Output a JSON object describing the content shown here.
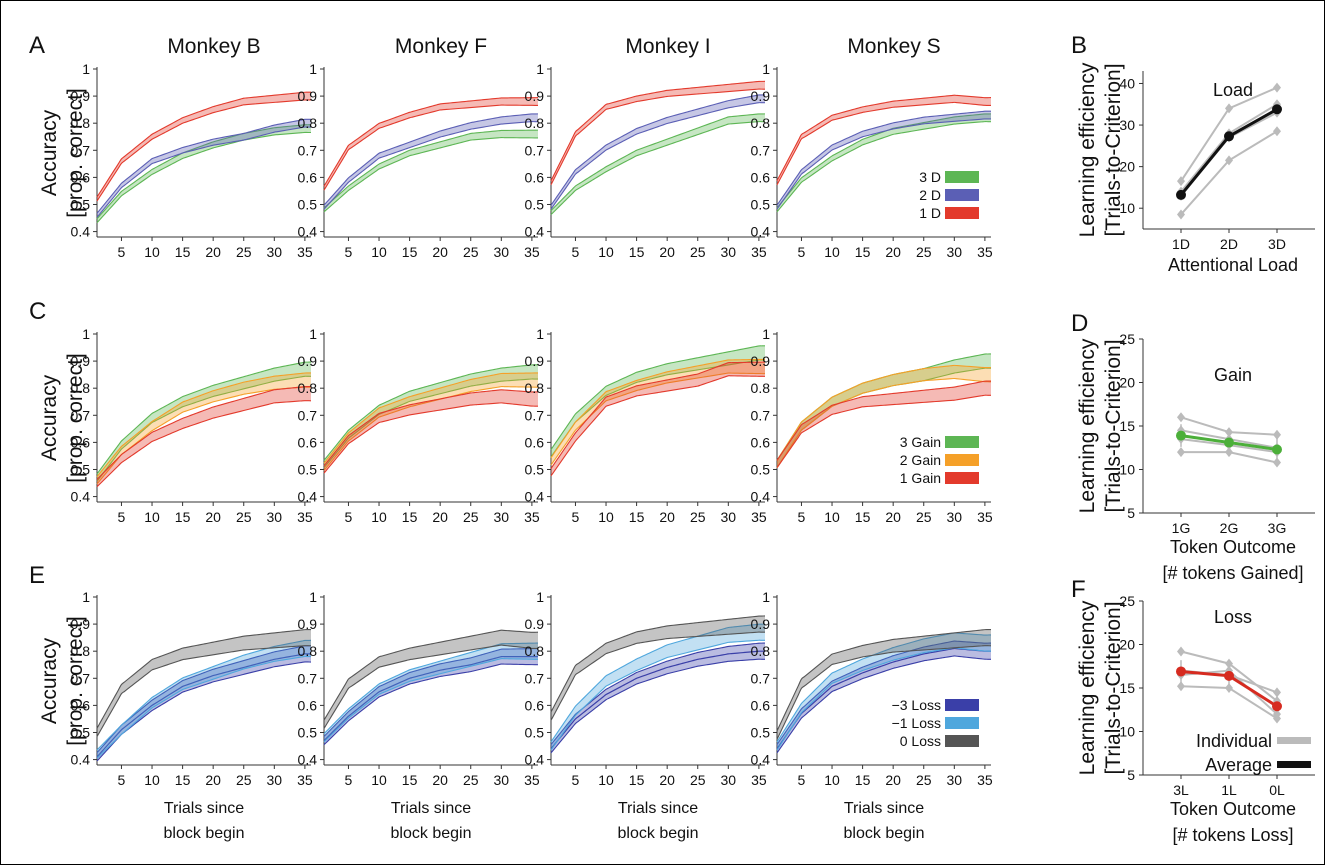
{
  "panel_letters": [
    "A",
    "B",
    "C",
    "D",
    "E",
    "F"
  ],
  "column_titles": [
    "Monkey B",
    "Monkey F",
    "Monkey I",
    "Monkey S"
  ],
  "y_label_line1": "Accuracy",
  "y_label_line2": "[prop. correct]",
  "x_label_line1": "Trials since",
  "x_label_line2": "block begin",
  "curve_axis": {
    "x_ticks": [
      5,
      10,
      15,
      20,
      25,
      30,
      35
    ],
    "y_ticks": [
      0.4,
      0.5,
      0.6,
      0.7,
      0.8,
      0.9,
      1
    ],
    "y_tick_labels": [
      "0.4",
      "0.5",
      "0.6",
      "0.7",
      "0.8",
      "0.9",
      "1"
    ],
    "xlim": [
      1,
      36
    ],
    "ylim": [
      0.38,
      1.0
    ]
  },
  "colors": {
    "green": "#5db654",
    "blue": "#5b5fb5",
    "red": "#e33a2c",
    "orange": "#f5a028",
    "navy": "#3a3fa8",
    "lightblue": "#4fa7dd",
    "gray": "#555555",
    "summary_gray": "#bbbbbb",
    "average_black": "#111111",
    "gain_green": "#4caf3a",
    "loss_red": "#d62b20"
  },
  "chart_data": [
    {
      "type": "line",
      "panel": "A",
      "legend": [
        "3 D",
        "2 D",
        "1 D"
      ],
      "x": [
        1,
        5,
        10,
        15,
        20,
        25,
        30,
        35
      ],
      "monkeys": [
        {
          "title": "Monkey B",
          "series": [
            {
              "name": "3 D",
              "color": "green",
              "values": [
                0.44,
                0.54,
                0.62,
                0.68,
                0.72,
                0.75,
                0.77,
                0.78
              ]
            },
            {
              "name": "2 D",
              "color": "blue",
              "values": [
                0.46,
                0.57,
                0.66,
                0.7,
                0.73,
                0.75,
                0.78,
                0.8
              ]
            },
            {
              "name": "1 D",
              "color": "red",
              "values": [
                0.52,
                0.66,
                0.75,
                0.81,
                0.85,
                0.88,
                0.89,
                0.9
              ]
            }
          ]
        },
        {
          "title": "Monkey F",
          "series": [
            {
              "name": "3 D",
              "color": "green",
              "values": [
                0.48,
                0.56,
                0.64,
                0.69,
                0.72,
                0.75,
                0.76,
                0.76
              ]
            },
            {
              "name": "2 D",
              "color": "blue",
              "values": [
                0.49,
                0.59,
                0.68,
                0.72,
                0.76,
                0.79,
                0.81,
                0.82
              ]
            },
            {
              "name": "1 D",
              "color": "red",
              "values": [
                0.56,
                0.71,
                0.79,
                0.83,
                0.86,
                0.87,
                0.88,
                0.88
              ]
            }
          ]
        },
        {
          "title": "Monkey I",
          "series": [
            {
              "name": "3 D",
              "color": "green",
              "values": [
                0.47,
                0.56,
                0.63,
                0.69,
                0.73,
                0.77,
                0.81,
                0.82
              ]
            },
            {
              "name": "2 D",
              "color": "blue",
              "values": [
                0.49,
                0.62,
                0.71,
                0.77,
                0.81,
                0.84,
                0.87,
                0.89
              ]
            },
            {
              "name": "1 D",
              "color": "red",
              "values": [
                0.58,
                0.76,
                0.86,
                0.89,
                0.91,
                0.92,
                0.93,
                0.94
              ]
            }
          ]
        },
        {
          "title": "Monkey S",
          "series": [
            {
              "name": "3 D",
              "color": "green",
              "values": [
                0.48,
                0.59,
                0.67,
                0.73,
                0.77,
                0.79,
                0.81,
                0.82
              ]
            },
            {
              "name": "2 D",
              "color": "blue",
              "values": [
                0.49,
                0.62,
                0.71,
                0.76,
                0.79,
                0.81,
                0.82,
                0.83
              ]
            },
            {
              "name": "1 D",
              "color": "red",
              "values": [
                0.58,
                0.75,
                0.82,
                0.85,
                0.87,
                0.88,
                0.89,
                0.88
              ]
            }
          ]
        }
      ]
    },
    {
      "type": "line",
      "panel": "C",
      "legend": [
        "3 Gain",
        "2 Gain",
        "1 Gain"
      ],
      "x": [
        1,
        5,
        10,
        15,
        20,
        25,
        30,
        35
      ],
      "monkeys": [
        {
          "title": "Monkey B",
          "series": [
            {
              "name": "3 Gain",
              "color": "green",
              "values": [
                0.47,
                0.59,
                0.69,
                0.75,
                0.79,
                0.82,
                0.85,
                0.87
              ]
            },
            {
              "name": "2 Gain",
              "color": "orange",
              "values": [
                0.46,
                0.57,
                0.66,
                0.73,
                0.77,
                0.8,
                0.82,
                0.83
              ]
            },
            {
              "name": "1 Gain",
              "color": "red",
              "values": [
                0.45,
                0.54,
                0.62,
                0.67,
                0.71,
                0.74,
                0.77,
                0.78
              ]
            }
          ]
        },
        {
          "title": "Monkey F",
          "series": [
            {
              "name": "3 Gain",
              "color": "green",
              "values": [
                0.52,
                0.63,
                0.72,
                0.77,
                0.8,
                0.83,
                0.85,
                0.86
              ]
            },
            {
              "name": "2 Gain",
              "color": "orange",
              "values": [
                0.51,
                0.62,
                0.71,
                0.75,
                0.78,
                0.81,
                0.83,
                0.83
              ]
            },
            {
              "name": "1 Gain",
              "color": "red",
              "values": [
                0.5,
                0.61,
                0.69,
                0.72,
                0.74,
                0.76,
                0.77,
                0.76
              ]
            }
          ]
        },
        {
          "title": "Monkey I",
          "series": [
            {
              "name": "3 Gain",
              "color": "green",
              "values": [
                0.56,
                0.69,
                0.79,
                0.84,
                0.87,
                0.89,
                0.91,
                0.93
              ]
            },
            {
              "name": "2 Gain",
              "color": "orange",
              "values": [
                0.53,
                0.66,
                0.77,
                0.81,
                0.84,
                0.86,
                0.88,
                0.88
              ]
            },
            {
              "name": "1 Gain",
              "color": "red",
              "values": [
                0.49,
                0.62,
                0.75,
                0.79,
                0.81,
                0.83,
                0.87,
                0.87
              ]
            }
          ]
        },
        {
          "title": "Monkey S",
          "series": [
            {
              "name": "3 Gain",
              "color": "green",
              "values": [
                0.52,
                0.66,
                0.75,
                0.8,
                0.83,
                0.85,
                0.88,
                0.9
              ]
            },
            {
              "name": "2 Gain",
              "color": "orange",
              "values": [
                0.52,
                0.66,
                0.75,
                0.8,
                0.83,
                0.85,
                0.86,
                0.85
              ]
            },
            {
              "name": "1 Gain",
              "color": "red",
              "values": [
                0.52,
                0.65,
                0.72,
                0.75,
                0.76,
                0.77,
                0.78,
                0.8
              ]
            }
          ]
        }
      ]
    },
    {
      "type": "line",
      "panel": "E",
      "legend": [
        "−3 Loss",
        "−1 Loss",
        "0 Loss"
      ],
      "x": [
        1,
        5,
        10,
        15,
        20,
        25,
        30,
        35
      ],
      "monkeys": [
        {
          "title": "Monkey B",
          "series": [
            {
              "name": "−3 Loss",
              "color": "navy",
              "values": [
                0.41,
                0.51,
                0.6,
                0.67,
                0.71,
                0.74,
                0.77,
                0.79
              ]
            },
            {
              "name": "−1 Loss",
              "color": "lightblue",
              "values": [
                0.42,
                0.51,
                0.61,
                0.68,
                0.72,
                0.76,
                0.79,
                0.81
              ]
            },
            {
              "name": "0 Loss",
              "color": "gray",
              "values": [
                0.5,
                0.66,
                0.75,
                0.79,
                0.81,
                0.83,
                0.84,
                0.85
              ]
            }
          ]
        },
        {
          "title": "Monkey F",
          "series": [
            {
              "name": "−3 Loss",
              "color": "navy",
              "values": [
                0.47,
                0.56,
                0.65,
                0.7,
                0.73,
                0.75,
                0.78,
                0.78
              ]
            },
            {
              "name": "−1 Loss",
              "color": "lightblue",
              "values": [
                0.48,
                0.57,
                0.66,
                0.71,
                0.74,
                0.77,
                0.8,
                0.8
              ]
            },
            {
              "name": "0 Loss",
              "color": "gray",
              "values": [
                0.53,
                0.68,
                0.76,
                0.79,
                0.81,
                0.83,
                0.85,
                0.84
              ]
            }
          ]
        },
        {
          "title": "Monkey I",
          "series": [
            {
              "name": "−3 Loss",
              "color": "navy",
              "values": [
                0.44,
                0.55,
                0.64,
                0.7,
                0.74,
                0.77,
                0.79,
                0.8
              ]
            },
            {
              "name": "−1 Loss",
              "color": "lightblue",
              "values": [
                0.45,
                0.58,
                0.69,
                0.75,
                0.8,
                0.83,
                0.86,
                0.87
              ]
            },
            {
              "name": "0 Loss",
              "color": "gray",
              "values": [
                0.56,
                0.73,
                0.81,
                0.85,
                0.87,
                0.88,
                0.89,
                0.9
              ]
            }
          ]
        },
        {
          "title": "Monkey S",
          "series": [
            {
              "name": "−3 Loss",
              "color": "navy",
              "values": [
                0.44,
                0.57,
                0.67,
                0.72,
                0.76,
                0.79,
                0.81,
                0.8
              ]
            },
            {
              "name": "−1 Loss",
              "color": "lightblue",
              "values": [
                0.45,
                0.59,
                0.7,
                0.75,
                0.79,
                0.82,
                0.84,
                0.83
              ]
            },
            {
              "name": "0 Loss",
              "color": "gray",
              "values": [
                0.49,
                0.68,
                0.77,
                0.8,
                0.82,
                0.83,
                0.84,
                0.85
              ]
            }
          ]
        }
      ]
    },
    {
      "type": "line",
      "panel": "B",
      "title": "Load",
      "ylabel_line1": "Learning efficiency",
      "ylabel_line2": "[Trials-to-Criterion]",
      "xlabel_line1": "Attentional Load",
      "xlabel_line2": "",
      "categories": [
        "1D",
        "2D",
        "3D"
      ],
      "yticks": [
        10,
        20,
        30,
        40
      ],
      "ylim": [
        5,
        43
      ],
      "individual": [
        [
          16.5,
          34.0,
          39.0
        ],
        [
          8.5,
          21.5,
          28.5
        ],
        [
          13.0,
          27.0,
          33.0
        ],
        [
          14.0,
          28.0,
          35.0
        ]
      ],
      "average": {
        "values": [
          13.2,
          27.3,
          33.8
        ],
        "color": "average_black"
      }
    },
    {
      "type": "line",
      "panel": "D",
      "title": "Gain",
      "ylabel_line1": "Learning efficiency",
      "ylabel_line2": "[Trials-to-Criterion]",
      "xlabel_line1": "Token Outcome",
      "xlabel_line2": "[# tokens Gained]",
      "categories": [
        "1G",
        "2G",
        "3G"
      ],
      "yticks": [
        5,
        10,
        15,
        20,
        25
      ],
      "ylim": [
        5,
        25
      ],
      "individual": [
        [
          16.0,
          14.3,
          14.0
        ],
        [
          12.0,
          12.0,
          10.8
        ],
        [
          14.5,
          13.5,
          12.5
        ],
        [
          13.5,
          12.8,
          12.0
        ]
      ],
      "average": {
        "values": [
          13.9,
          13.1,
          12.3
        ],
        "color": "gain_green"
      }
    },
    {
      "type": "line",
      "panel": "F",
      "title": "Loss",
      "ylabel_line1": "Learning efficiency",
      "ylabel_line2": "[Trials-to-Criterion]",
      "xlabel_line1": "Token Outcome",
      "xlabel_line2": "[# tokens Loss]",
      "categories": [
        "3L",
        "1L",
        "0L"
      ],
      "yticks": [
        5,
        10,
        15,
        20,
        25
      ],
      "ylim": [
        5,
        25
      ],
      "individual": [
        [
          19.2,
          17.8,
          13.5
        ],
        [
          15.2,
          15.0,
          11.5
        ],
        [
          17.0,
          16.5,
          14.5
        ],
        [
          16.5,
          17.0,
          12.0
        ]
      ],
      "average": {
        "values": [
          16.9,
          16.4,
          12.9
        ],
        "color": "loss_red"
      },
      "legend": [
        "Individual",
        "Average"
      ]
    }
  ]
}
